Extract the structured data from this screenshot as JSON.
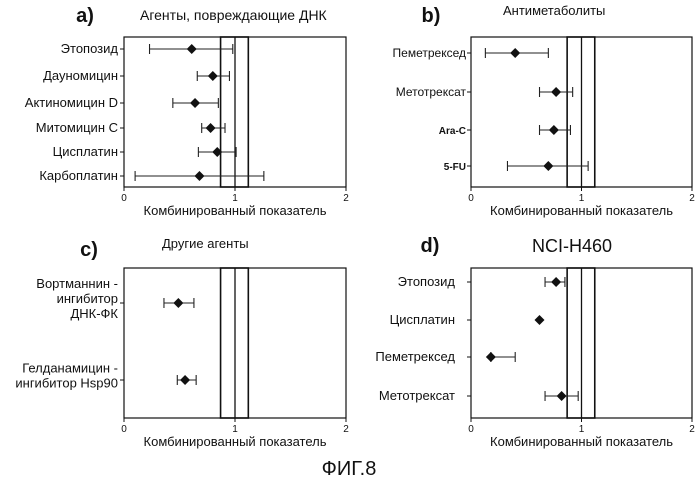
{
  "figure_label": "ФИГ.8",
  "chart_data": [
    {
      "type": "scatter",
      "panel": "a)",
      "title": "Агенты, повреждающие ДНК",
      "xlabel": "Комбинированный показатель",
      "xlim": [
        0,
        2
      ],
      "xticks": [
        "0",
        "1",
        "2"
      ],
      "additivity_band": [
        0.87,
        1.12
      ],
      "categories": [
        "Этопозид",
        "Дауномицин",
        "Актиномицин D",
        "Митомицин С",
        "Цисплатин",
        "Карбоплатин"
      ],
      "values": [
        0.61,
        0.8,
        0.64,
        0.78,
        0.84,
        0.68
      ],
      "err_low": [
        0.23,
        0.66,
        0.44,
        0.7,
        0.67,
        0.1
      ],
      "err_high": [
        0.98,
        0.95,
        0.85,
        0.91,
        1.01,
        1.26
      ]
    },
    {
      "type": "scatter",
      "panel": "b)",
      "title": "Антиметаболиты",
      "xlabel": "Комбинированный показатель",
      "xlim": [
        0,
        2
      ],
      "xticks": [
        "0",
        "1",
        "2"
      ],
      "additivity_band": [
        0.87,
        1.12
      ],
      "categories": [
        "Пеметрексед",
        "Метотрексат",
        "Ara-C",
        "5-FU"
      ],
      "values": [
        0.4,
        0.77,
        0.75,
        0.7
      ],
      "err_low": [
        0.13,
        0.62,
        0.62,
        0.33
      ],
      "err_high": [
        0.7,
        0.92,
        0.9,
        1.06
      ]
    },
    {
      "type": "scatter",
      "panel": "c)",
      "title": "Другие агенты",
      "xlabel": "Комбинированный показатель",
      "xlim": [
        0,
        2
      ],
      "xticks": [
        "0",
        "1",
        "2"
      ],
      "additivity_band": [
        0.87,
        1.12
      ],
      "categories": [
        "Вортманнин - ингибитор ДНК-ФК",
        "Гелданамицин - ингибитор Hsp90"
      ],
      "values": [
        0.49,
        0.55
      ],
      "err_low": [
        0.36,
        0.48
      ],
      "err_high": [
        0.63,
        0.65
      ]
    },
    {
      "type": "scatter",
      "panel": "d)",
      "title": "NCI-H460",
      "xlabel": "Комбинированный показатель",
      "xlim": [
        0,
        2
      ],
      "xticks": [
        "0",
        "1",
        "2"
      ],
      "additivity_band": [
        0.87,
        1.12
      ],
      "categories": [
        "Этопозид",
        "Цисплатин",
        "Пеметрексед",
        "Метотрексат"
      ],
      "values": [
        0.77,
        0.62,
        0.18,
        0.82
      ],
      "err_low": [
        0.67,
        0.62,
        0.18,
        0.67
      ],
      "err_high": [
        0.85,
        0.62,
        0.4,
        0.97
      ]
    }
  ]
}
